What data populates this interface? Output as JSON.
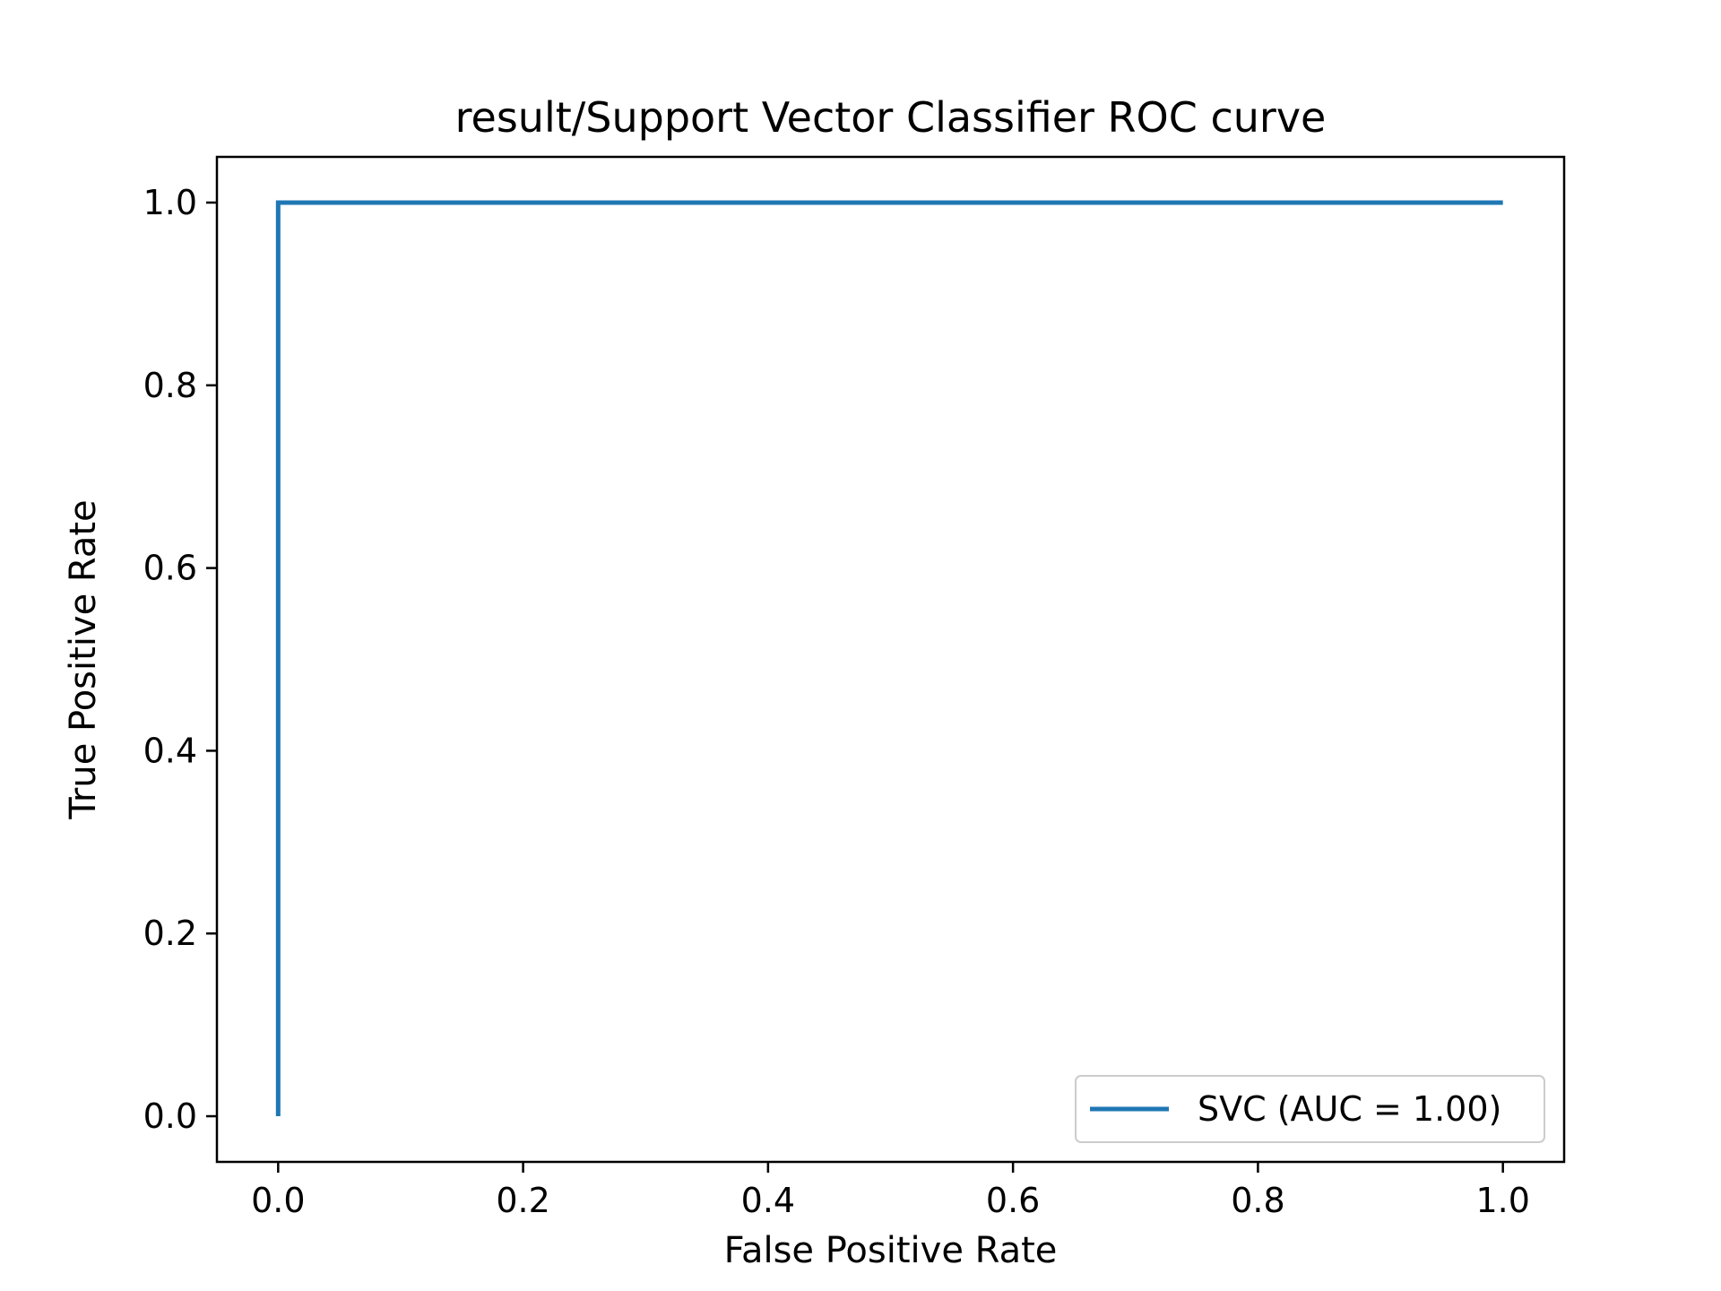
{
  "chart_data": {
    "type": "line",
    "title": "result/Support Vector Classifier ROC curve",
    "xlabel": "False Positive Rate",
    "ylabel": "True Positive Rate",
    "xlim": [
      -0.05,
      1.05
    ],
    "ylim": [
      -0.05,
      1.05
    ],
    "xticks": [
      0.0,
      0.2,
      0.4,
      0.6,
      0.8,
      1.0
    ],
    "xtick_labels": [
      "0.0",
      "0.2",
      "0.4",
      "0.6",
      "0.8",
      "1.0"
    ],
    "yticks": [
      0.0,
      0.2,
      0.4,
      0.6,
      0.8,
      1.0
    ],
    "ytick_labels": [
      "0.0",
      "0.2",
      "0.4",
      "0.6",
      "0.8",
      "1.0"
    ],
    "grid": false,
    "legend_position": "lower-right",
    "series": [
      {
        "name": "SVC (AUC = 1.00)",
        "color": "#1f77b4",
        "x": [
          0.0,
          0.0,
          1.0
        ],
        "y": [
          0.0,
          1.0,
          1.0
        ]
      }
    ]
  }
}
